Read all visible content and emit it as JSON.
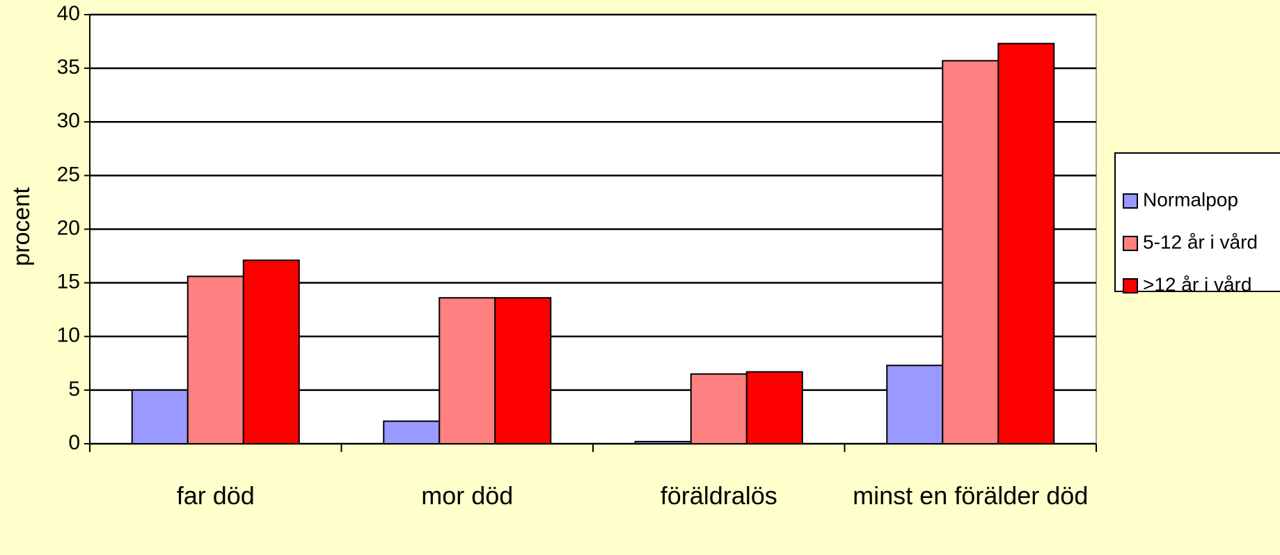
{
  "chart_data": {
    "type": "bar",
    "y_label": "procent",
    "categories": [
      "far död",
      "mor död",
      "föräldralös",
      "minst en förälder död"
    ],
    "series": [
      {
        "name": "Normalpop",
        "color": "#9999ff",
        "values": [
          5.0,
          2.1,
          0.2,
          7.3
        ]
      },
      {
        "name": "5-12 år i vård",
        "color": "#ff8080",
        "values": [
          15.6,
          13.6,
          6.5,
          35.7
        ]
      },
      {
        "name": ">12 år i vård",
        "color": "#ff0000",
        "values": [
          17.1,
          13.6,
          6.7,
          37.3
        ]
      }
    ],
    "ylim": [
      0,
      40
    ],
    "yticks": [
      0,
      5,
      10,
      15,
      20,
      25,
      30,
      35,
      40
    ],
    "grid": true,
    "legend": "right"
  }
}
